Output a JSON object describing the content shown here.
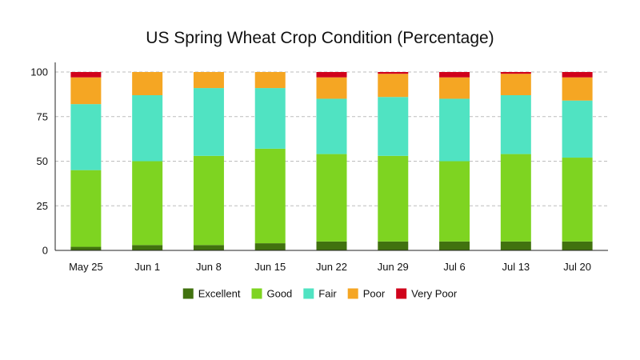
{
  "chart_data": {
    "type": "bar",
    "stacked": true,
    "title": "US Spring Wheat Crop Condition (Percentage)",
    "xlabel": "",
    "ylabel": "",
    "ylim": [
      0,
      100
    ],
    "yticks": [
      0,
      25,
      50,
      75,
      100
    ],
    "grid": true,
    "legend_position": "bottom",
    "categories": [
      "May 25",
      "Jun 1",
      "Jun 8",
      "Jun 15",
      "Jun 22",
      "Jun 29",
      "Jul 6",
      "Jul 13",
      "Jul 20"
    ],
    "series": [
      {
        "name": "Excellent",
        "color": "#41720f",
        "values": [
          2,
          3,
          3,
          4,
          5,
          5,
          5,
          5,
          5
        ]
      },
      {
        "name": "Good",
        "color": "#7ed421",
        "values": [
          43,
          47,
          50,
          53,
          49,
          48,
          45,
          49,
          47
        ]
      },
      {
        "name": "Fair",
        "color": "#50e3c2",
        "values": [
          37,
          37,
          38,
          34,
          31,
          33,
          35,
          33,
          32
        ]
      },
      {
        "name": "Poor",
        "color": "#f5a623",
        "values": [
          15,
          13,
          9,
          9,
          12,
          13,
          12,
          12,
          13
        ]
      },
      {
        "name": "Very Poor",
        "color": "#d0021b",
        "values": [
          3,
          0,
          0,
          0,
          3,
          1,
          3,
          1,
          3
        ]
      }
    ]
  }
}
